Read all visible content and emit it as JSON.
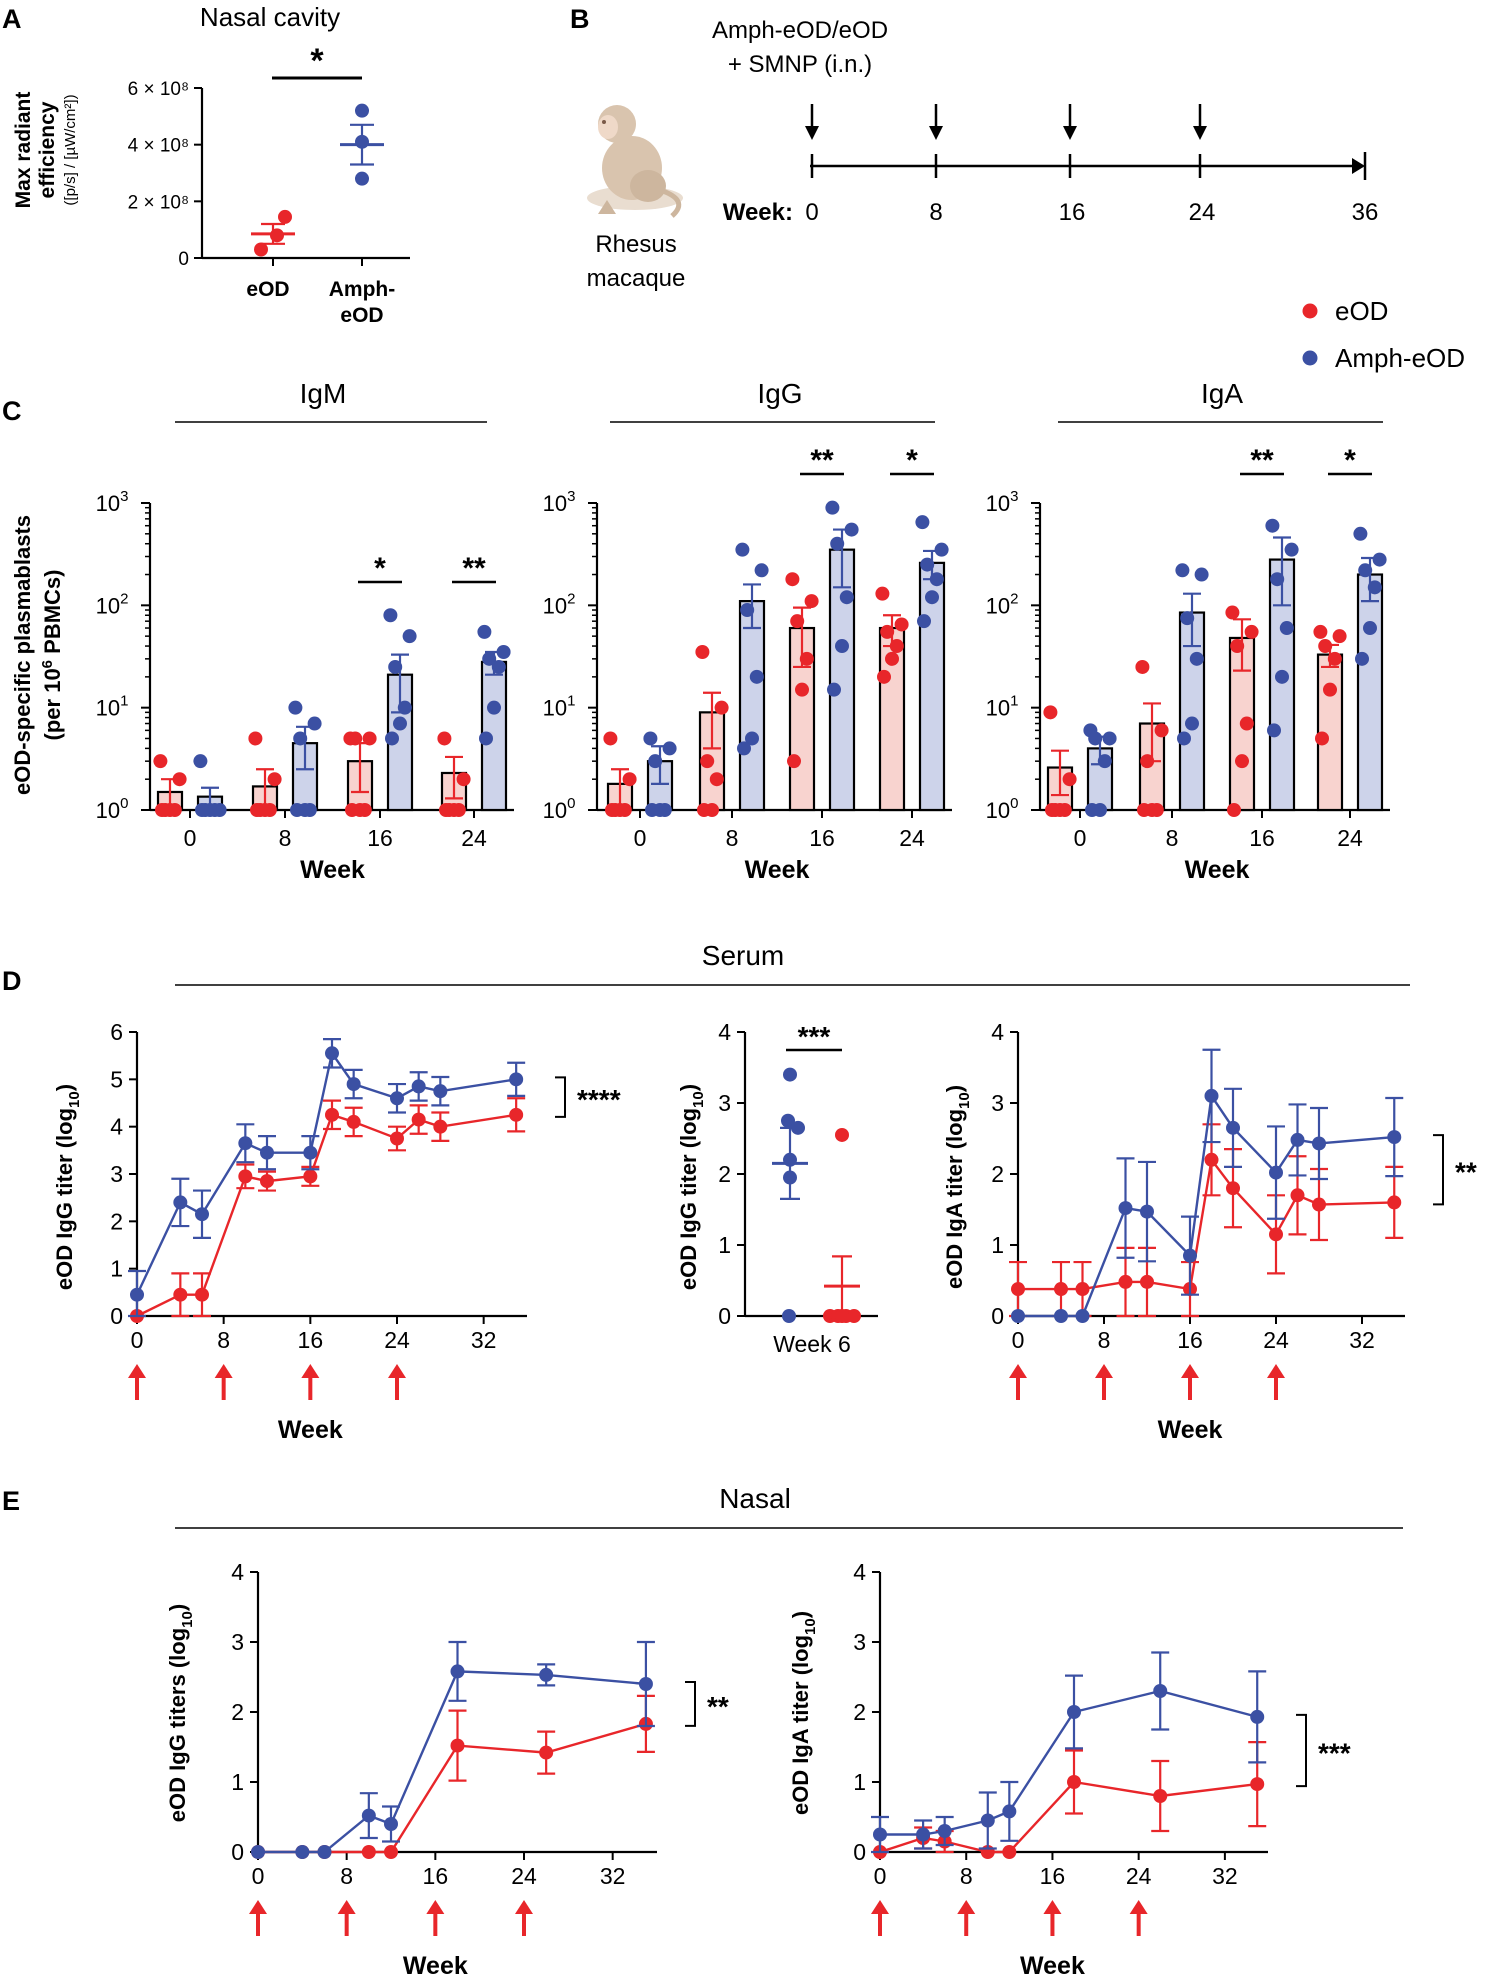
{
  "colors": {
    "eod": "#e8262a",
    "amph": "#3b50a3",
    "eod_fill": "#f8d3cf",
    "amph_fill": "#cdd3ea",
    "axis": "#000000"
  },
  "panel_letters": {
    "a": "A",
    "b": "B",
    "c": "C",
    "d": "D",
    "e": "E"
  },
  "panel_a": {
    "title": "Nasal cavity",
    "ylabel_line1": "Max radiant",
    "ylabel_line2": "efficiency",
    "yunits": "([p/s] / [µW/cm²])",
    "ytick_labels": [
      "0",
      "2 × 10⁸",
      "4 × 10⁸",
      "6 × 10⁸"
    ],
    "xlabels": [
      "eOD",
      "Amph-",
      "eOD"
    ],
    "significance": "*"
  },
  "panel_b": {
    "treatment_line1": "Amph-eOD/eOD",
    "treatment_line2": "+ SMNP (i.n.)",
    "animal_line1": "Rhesus",
    "animal_line2": "macaque",
    "week_label": "Week:",
    "weeks": [
      "0",
      "8",
      "16",
      "24",
      "36"
    ]
  },
  "legend": {
    "eod": "eOD",
    "amph": "Amph-eOD"
  },
  "panel_c": {
    "ylabel_line1": "eOD-specific plasmablasts",
    "ylabel_line2": "(per 10",
    "ylabel_sup": "6",
    "ylabel_line2_end": " PBMCs)",
    "ytick_base": "10",
    "ytick_exps": [
      "0",
      "1",
      "2",
      "3"
    ],
    "xlabel": "Week",
    "xticks": [
      "0",
      "8",
      "16",
      "24"
    ],
    "titles": [
      "IgM",
      "IgG",
      "IgA"
    ],
    "sig": [
      [
        "*",
        "**"
      ],
      [
        "**",
        "*"
      ],
      [
        "**",
        "*"
      ]
    ]
  },
  "panel_d": {
    "section_title": "Serum",
    "ylabel_igg": "eOD IgG titer (log",
    "ylabel_iga": "eOD IgA titer (log",
    "ylabel_sub": "10",
    "ylabel_close": ")",
    "xlabel": "Week",
    "week6_label": "Week 6",
    "sig_igg": "****",
    "sig_week6": "***",
    "sig_iga": "**",
    "xticks": [
      "0",
      "8",
      "16",
      "24",
      "32"
    ],
    "yticks_igg": [
      "0",
      "1",
      "2",
      "3",
      "4",
      "5",
      "6"
    ],
    "yticks_4": [
      "0",
      "1",
      "2",
      "3",
      "4"
    ]
  },
  "panel_e": {
    "section_title": "Nasal",
    "ylabel_igg": "eOD IgG titers (log",
    "ylabel_iga": "eOD IgA titer (log",
    "ylabel_sub": "10",
    "ylabel_close": ")",
    "xlabel": "Week",
    "sig_igg": "**",
    "sig_iga": "***",
    "xticks": [
      "0",
      "8",
      "16",
      "24",
      "32"
    ],
    "yticks": [
      "0",
      "1",
      "2",
      "3",
      "4"
    ]
  },
  "chart_data": [
    {
      "id": "A",
      "type": "scatter",
      "title": "Nasal cavity",
      "ylabel": "Max radiant efficiency ([p/s] / [µW/cm²])",
      "ylim": [
        0,
        600000000
      ],
      "categories": [
        "eOD",
        "Amph-eOD"
      ],
      "series": [
        {
          "name": "eOD",
          "points": [
            145000000,
            30000000,
            80000000
          ],
          "mean": 85000000,
          "sem": 35000000
        },
        {
          "name": "Amph-eOD",
          "points": [
            520000000,
            410000000,
            280000000
          ],
          "mean": 400000000,
          "sem": 70000000
        }
      ]
    },
    {
      "id": "C-IgM",
      "type": "bar",
      "title": "IgM",
      "yscale": "log",
      "ylim": [
        1,
        1000
      ],
      "categories": [
        "0",
        "8",
        "16",
        "24"
      ],
      "series": [
        {
          "name": "eOD",
          "values": [
            1.5,
            1.7,
            3.0,
            2.3
          ],
          "sem": [
            0.5,
            0.8,
            1.5,
            1.0
          ],
          "points": [
            [
              3,
              2,
              1,
              1,
              1,
              1
            ],
            [
              5,
              2,
              1,
              1,
              1,
              1
            ],
            [
              5,
              5,
              5,
              1,
              1,
              1
            ],
            [
              5,
              2,
              1,
              1,
              1,
              1
            ]
          ]
        },
        {
          "name": "Amph-eOD",
          "values": [
            1.35,
            4.5,
            21,
            28
          ],
          "sem": [
            0.3,
            2,
            12,
            7
          ],
          "points": [
            [
              3,
              1,
              1,
              1,
              1,
              1
            ],
            [
              10,
              7,
              5,
              1,
              1,
              1
            ],
            [
              80,
              50,
              25,
              10,
              7,
              5
            ],
            [
              55,
              35,
              30,
              25,
              10,
              5
            ]
          ]
        }
      ]
    },
    {
      "id": "C-IgG",
      "type": "bar",
      "title": "IgG",
      "yscale": "log",
      "ylim": [
        1,
        1000
      ],
      "categories": [
        "0",
        "8",
        "16",
        "24"
      ],
      "series": [
        {
          "name": "eOD",
          "values": [
            1.8,
            9,
            60,
            60
          ],
          "sem": [
            0.7,
            5,
            35,
            20
          ],
          "points": [
            [
              5,
              2,
              1,
              1,
              1,
              1
            ],
            [
              35,
              10,
              3,
              2,
              1,
              1
            ],
            [
              180,
              110,
              70,
              30,
              15,
              3
            ],
            [
              130,
              65,
              55,
              40,
              30,
              20
            ]
          ]
        },
        {
          "name": "Amph-eOD",
          "values": [
            3,
            110,
            350,
            260
          ],
          "sem": [
            1.2,
            50,
            200,
            80
          ],
          "points": [
            [
              5,
              4,
              3,
              1,
              1,
              1
            ],
            [
              350,
              220,
              90,
              20,
              5,
              4
            ],
            [
              900,
              550,
              400,
              120,
              40,
              15
            ],
            [
              650,
              350,
              250,
              180,
              120,
              70
            ]
          ]
        }
      ]
    },
    {
      "id": "C-IgA",
      "type": "bar",
      "title": "IgA",
      "yscale": "log",
      "ylim": [
        1,
        1000
      ],
      "categories": [
        "0",
        "8",
        "16",
        "24"
      ],
      "series": [
        {
          "name": "eOD",
          "values": [
            2.6,
            7,
            48,
            33
          ],
          "sem": [
            1.2,
            4,
            25,
            8
          ],
          "points": [
            [
              9,
              2,
              1,
              1,
              1,
              1
            ],
            [
              25,
              6,
              3,
              1,
              1,
              1
            ],
            [
              85,
              55,
              40,
              7,
              3,
              1
            ],
            [
              55,
              50,
              40,
              30,
              15,
              5
            ]
          ]
        },
        {
          "name": "Amph-eOD",
          "values": [
            4,
            85,
            280,
            200
          ],
          "sem": [
            1.2,
            45,
            180,
            90
          ],
          "points": [
            [
              6,
              5,
              5,
              3,
              1,
              1
            ],
            [
              220,
              200,
              75,
              30,
              7,
              5
            ],
            [
              600,
              350,
              180,
              60,
              20,
              6
            ],
            [
              500,
              280,
              220,
              150,
              60,
              30
            ]
          ]
        }
      ]
    },
    {
      "id": "D-serum-IgG",
      "type": "line",
      "xlabel": "Week",
      "ylabel": "eOD IgG titer (log10)",
      "xlim": [
        0,
        36
      ],
      "ylim": [
        0,
        6
      ],
      "vaccination_weeks": [
        0,
        8,
        16,
        24
      ],
      "series": [
        {
          "name": "Amph-eOD",
          "x": [
            0,
            4,
            6,
            10,
            12,
            16,
            18,
            20,
            24,
            26,
            28,
            35
          ],
          "y": [
            0.45,
            2.4,
            2.15,
            3.65,
            3.45,
            3.45,
            5.55,
            4.9,
            4.6,
            4.85,
            4.75,
            5.0
          ],
          "err": [
            0.5,
            0.5,
            0.5,
            0.4,
            0.35,
            0.35,
            0.3,
            0.3,
            0.3,
            0.3,
            0.3,
            0.35
          ]
        },
        {
          "name": "eOD",
          "x": [
            0,
            4,
            6,
            10,
            12,
            16,
            18,
            20,
            24,
            26,
            28,
            35
          ],
          "y": [
            0.0,
            0.45,
            0.45,
            2.95,
            2.85,
            2.95,
            4.25,
            4.1,
            3.75,
            4.15,
            4.0,
            4.25
          ],
          "err": [
            0,
            0.45,
            0.45,
            0.25,
            0.2,
            0.2,
            0.3,
            0.3,
            0.25,
            0.3,
            0.3,
            0.35
          ]
        }
      ]
    },
    {
      "id": "D-serum-IgG-week6",
      "type": "scatter",
      "xlabel": "Week 6",
      "ylabel": "eOD IgG titer (log10)",
      "ylim": [
        0,
        4
      ],
      "series": [
        {
          "name": "Amph-eOD",
          "points": [
            3.4,
            2.75,
            2.65,
            2.2,
            1.95,
            0.0
          ],
          "mean": 2.15,
          "sem": 0.5
        },
        {
          "name": "eOD",
          "points": [
            2.55,
            0,
            0,
            0,
            0,
            0
          ],
          "mean": 0.42,
          "sem": 0.42
        }
      ]
    },
    {
      "id": "D-serum-IgA",
      "type": "line",
      "xlabel": "Week",
      "ylabel": "eOD IgA titer (log10)",
      "xlim": [
        0,
        36
      ],
      "ylim": [
        0,
        4
      ],
      "vaccination_weeks": [
        0,
        8,
        16,
        24
      ],
      "series": [
        {
          "name": "Amph-eOD",
          "x": [
            0,
            4,
            6,
            10,
            12,
            16,
            18,
            20,
            24,
            26,
            28,
            35
          ],
          "y": [
            0,
            0,
            0,
            1.52,
            1.47,
            0.85,
            3.1,
            2.65,
            2.02,
            2.48,
            2.43,
            2.52
          ],
          "err": [
            0,
            0,
            0,
            0.7,
            0.7,
            0.55,
            0.65,
            0.55,
            0.65,
            0.5,
            0.5,
            0.55
          ]
        },
        {
          "name": "eOD",
          "x": [
            0,
            4,
            6,
            10,
            12,
            16,
            18,
            20,
            24,
            26,
            28,
            35
          ],
          "y": [
            0.38,
            0.38,
            0.38,
            0.48,
            0.48,
            0.38,
            2.2,
            1.8,
            1.15,
            1.7,
            1.57,
            1.6
          ],
          "err": [
            0.38,
            0.38,
            0.38,
            0.48,
            0.48,
            0.38,
            0.5,
            0.55,
            0.55,
            0.55,
            0.5,
            0.5
          ]
        }
      ]
    },
    {
      "id": "E-nasal-IgG",
      "type": "line",
      "xlabel": "Week",
      "ylabel": "eOD IgG titers (log10)",
      "xlim": [
        0,
        36
      ],
      "ylim": [
        0,
        4
      ],
      "vaccination_weeks": [
        0,
        8,
        16,
        24
      ],
      "series": [
        {
          "name": "Amph-eOD",
          "x": [
            0,
            4,
            6,
            10,
            12,
            18,
            26,
            35
          ],
          "y": [
            0,
            0,
            0,
            0.52,
            0.4,
            2.58,
            2.53,
            2.4
          ],
          "err": [
            0,
            0,
            0,
            0.32,
            0.25,
            0.42,
            0.15,
            0.6
          ]
        },
        {
          "name": "eOD",
          "x": [
            0,
            4,
            6,
            10,
            12,
            18,
            26,
            35
          ],
          "y": [
            0,
            0,
            0,
            0,
            0,
            1.52,
            1.42,
            1.83
          ],
          "err": [
            0,
            0,
            0,
            0,
            0,
            0.5,
            0.3,
            0.4
          ]
        }
      ]
    },
    {
      "id": "E-nasal-IgA",
      "type": "line",
      "xlabel": "Week",
      "ylabel": "eOD IgA titer (log10)",
      "xlim": [
        0,
        36
      ],
      "ylim": [
        0,
        4
      ],
      "vaccination_weeks": [
        0,
        8,
        16,
        24
      ],
      "series": [
        {
          "name": "Amph-eOD",
          "x": [
            0,
            4,
            6,
            10,
            12,
            18,
            26,
            35
          ],
          "y": [
            0.25,
            0.25,
            0.3,
            0.45,
            0.58,
            2.0,
            2.3,
            1.93
          ],
          "err": [
            0.25,
            0.2,
            0.2,
            0.4,
            0.42,
            0.52,
            0.55,
            0.65
          ]
        },
        {
          "name": "eOD",
          "x": [
            0,
            4,
            6,
            10,
            12,
            18,
            26,
            35
          ],
          "y": [
            0,
            0.2,
            0.15,
            0,
            0,
            1.0,
            0.8,
            0.97
          ],
          "err": [
            0,
            0.15,
            0.15,
            0,
            0,
            0.45,
            0.5,
            0.6
          ]
        }
      ]
    }
  ]
}
